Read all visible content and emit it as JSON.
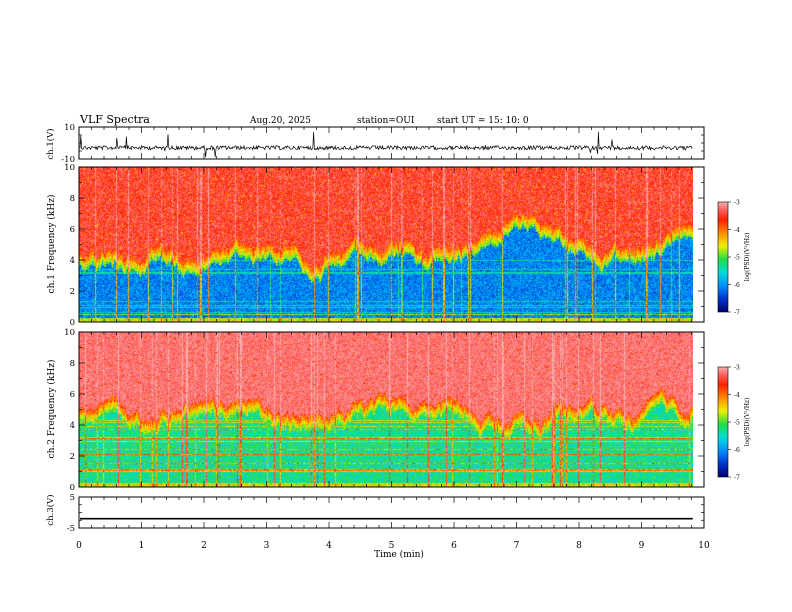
{
  "header": {
    "title": "VLF Spectra",
    "date": "Aug.20, 2025",
    "station": "station=OUI",
    "start": "start UT = 15: 10: 0"
  },
  "chart_data": [
    {
      "type": "line",
      "panel": "ch1-waveform",
      "ylabel": "ch.1(V)",
      "ylim": [
        -10,
        10
      ],
      "yticks": [
        "10",
        "-10"
      ],
      "baseline": -3,
      "description_of_signal": "noisy waveform around -3 V with spikes"
    },
    {
      "type": "heatmap",
      "panel": "ch1-spectrogram",
      "ylabel": "ch.1 Frequency (kHz)",
      "ylim": [
        0,
        10
      ],
      "yticks": [
        "0",
        "2",
        "4",
        "6",
        "8",
        "10"
      ],
      "colorbar": {
        "label": "log(PSD)(V²/Hz)",
        "range": [
          -7,
          -3
        ],
        "ticks": [
          "-3",
          "-4",
          "-5",
          "-6",
          "-7"
        ]
      },
      "cutoff_khz": 4.5
    },
    {
      "type": "heatmap",
      "panel": "ch2-spectrogram",
      "ylabel": "ch.2 Frequency (kHz)",
      "ylim": [
        0,
        10
      ],
      "yticks": [
        "0",
        "2",
        "4",
        "6",
        "8",
        "10"
      ],
      "colorbar": {
        "label": "log(PSD)(V²/Hz)",
        "range": [
          -7,
          -3
        ],
        "ticks": [
          "-3",
          "-4",
          "-5",
          "-6",
          "-7"
        ]
      },
      "cutoff_khz": 5
    },
    {
      "type": "line",
      "panel": "ch3-waveform",
      "ylabel": "ch.3(V)",
      "ylim": [
        -5,
        5
      ],
      "yticks": [
        "5",
        "-5"
      ],
      "baseline": -2
    }
  ],
  "xaxis": {
    "label": "Time (min)",
    "range": [
      0,
      10
    ],
    "ticks": [
      "0",
      "1",
      "2",
      "3",
      "4",
      "5",
      "6",
      "7",
      "8",
      "9",
      "10"
    ],
    "data_end": 9.82
  },
  "colormap": [
    "#00006e",
    "#0033cc",
    "#0090ff",
    "#00dddd",
    "#22dd44",
    "#f0f000",
    "#ff8800",
    "#ff2000",
    "#ff6060",
    "#f6b0b0"
  ]
}
